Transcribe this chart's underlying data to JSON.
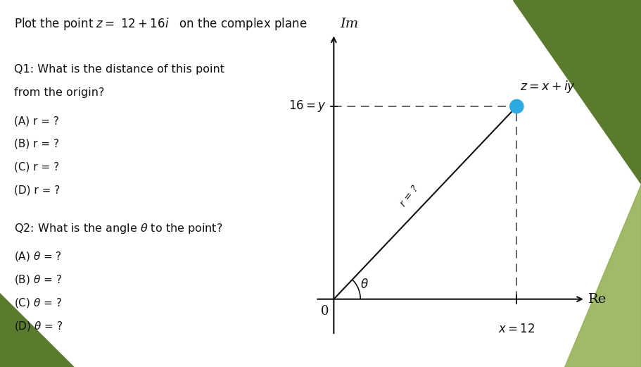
{
  "point_x": 12,
  "point_y": 16,
  "point_color": "#29ABE2",
  "dashed_color": "#666666",
  "line_color": "#111111",
  "axis_color": "#111111",
  "bg_color": "#ffffff",
  "xlim": [
    -1.5,
    17
  ],
  "ylim": [
    -3.5,
    23
  ],
  "green_dark": "#5a7a2e",
  "green_light": "#8fae50"
}
